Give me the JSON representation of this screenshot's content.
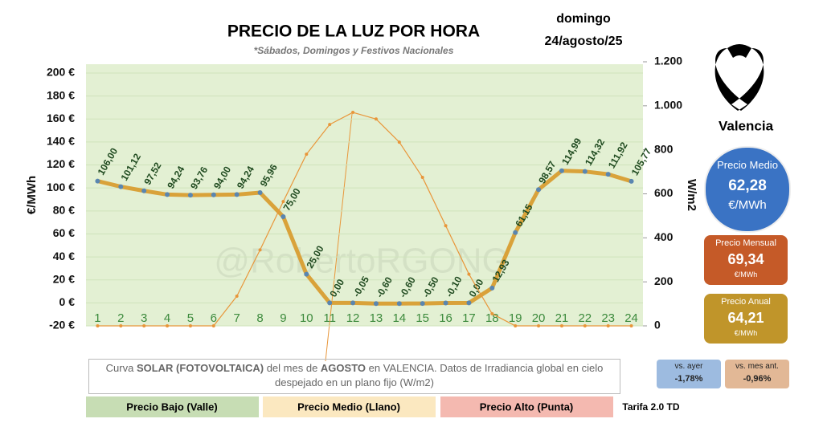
{
  "header": {
    "day": "domingo",
    "date": "24/agosto/25",
    "city": "Valencia"
  },
  "chart_data": {
    "type": "line",
    "title": "PRECIO DE LA LUZ POR HORA",
    "subtitle": "*Sábados, Domingos y Festivos Nacionales",
    "watermark": "@RobertoRGONG",
    "ylabel": "€/MWh",
    "y2label": "W/m2",
    "categories": [
      "1",
      "2",
      "3",
      "4",
      "5",
      "6",
      "7",
      "8",
      "9",
      "10",
      "11",
      "12",
      "13",
      "14",
      "15",
      "16",
      "17",
      "18",
      "19",
      "20",
      "21",
      "22",
      "23",
      "24"
    ],
    "series": [
      {
        "name": "Precio",
        "color": "#d9a23a",
        "marker_color": "#5a86b0",
        "axis": "y",
        "values": [
          106.0,
          101.12,
          97.52,
          94.24,
          93.76,
          94.0,
          94.24,
          95.96,
          75.0,
          25.0,
          0.0,
          -0.05,
          -0.6,
          -0.6,
          -0.5,
          -0.1,
          0.0,
          12.93,
          61.15,
          98.57,
          114.99,
          114.32,
          111.92,
          105.77
        ],
        "value_labels": [
          "106,00",
          "101,12",
          "97,52",
          "94,24",
          "93,76",
          "94,00",
          "94,24",
          "95,96",
          "75,00",
          "25,00",
          "0,00",
          "-0,05",
          "-0,60",
          "-0,60",
          "-0,50",
          "-0,10",
          "0,00",
          "12,93",
          "61,15",
          "98,57",
          "114,99",
          "114,32",
          "111,92",
          "105,77"
        ]
      },
      {
        "name": "Solar",
        "color": "#e8963a",
        "axis": "y2",
        "values": [
          0,
          0,
          0,
          0,
          0,
          0,
          135,
          345,
          565,
          780,
          915,
          970,
          940,
          835,
          675,
          455,
          235,
          55,
          0,
          0,
          0,
          0,
          0,
          0
        ]
      }
    ],
    "ylim": [
      -20,
      200
    ],
    "yticks": [
      {
        "value": 200,
        "label": "200 €"
      },
      {
        "value": 180,
        "label": "180 €"
      },
      {
        "value": 160,
        "label": "160 €"
      },
      {
        "value": 140,
        "label": "140 €"
      },
      {
        "value": 120,
        "label": "120 €"
      },
      {
        "value": 100,
        "label": "100 €"
      },
      {
        "value": 80,
        "label": "80 €"
      },
      {
        "value": 60,
        "label": "60 €"
      },
      {
        "value": 40,
        "label": "40 €"
      },
      {
        "value": 20,
        "label": "20 €"
      },
      {
        "value": 0,
        "label": "0 €"
      },
      {
        "value": -20,
        "label": "-20 €"
      }
    ],
    "y2lim": [
      0,
      1200
    ],
    "y2ticks": [
      {
        "value": 1200,
        "label": "1.200"
      },
      {
        "value": 1000,
        "label": "1.000"
      },
      800,
      600,
      400,
      200,
      0
    ],
    "grid": true
  },
  "note": {
    "parts": [
      "Curva ",
      "SOLAR (FOTOVOLTAICA)",
      " del mes de ",
      "AGOSTO",
      " en VALENCIA. Datos de Irradiancia global en cielo despejado en un plano fijo (W/m2)"
    ]
  },
  "legend": [
    "Precio Bajo (Valle)",
    "Precio Medio (Llano)",
    "Precio Alto (Punta)"
  ],
  "tariff": "Tarifa 2.0 TD",
  "stats": {
    "medio": {
      "label": "Precio Medio",
      "value": "62,28",
      "unit": "€/MWh"
    },
    "mensual": {
      "label": "Precio Mensual",
      "value": "69,34",
      "unit": "€/MWh"
    },
    "anual": {
      "label": "Precio Anual",
      "value": "64,21",
      "unit": "€/MWh"
    },
    "ayer": {
      "label": "vs. ayer",
      "value": "-1,78%"
    },
    "mes": {
      "label": "vs. mes ant.",
      "value": "-0,96%"
    }
  }
}
